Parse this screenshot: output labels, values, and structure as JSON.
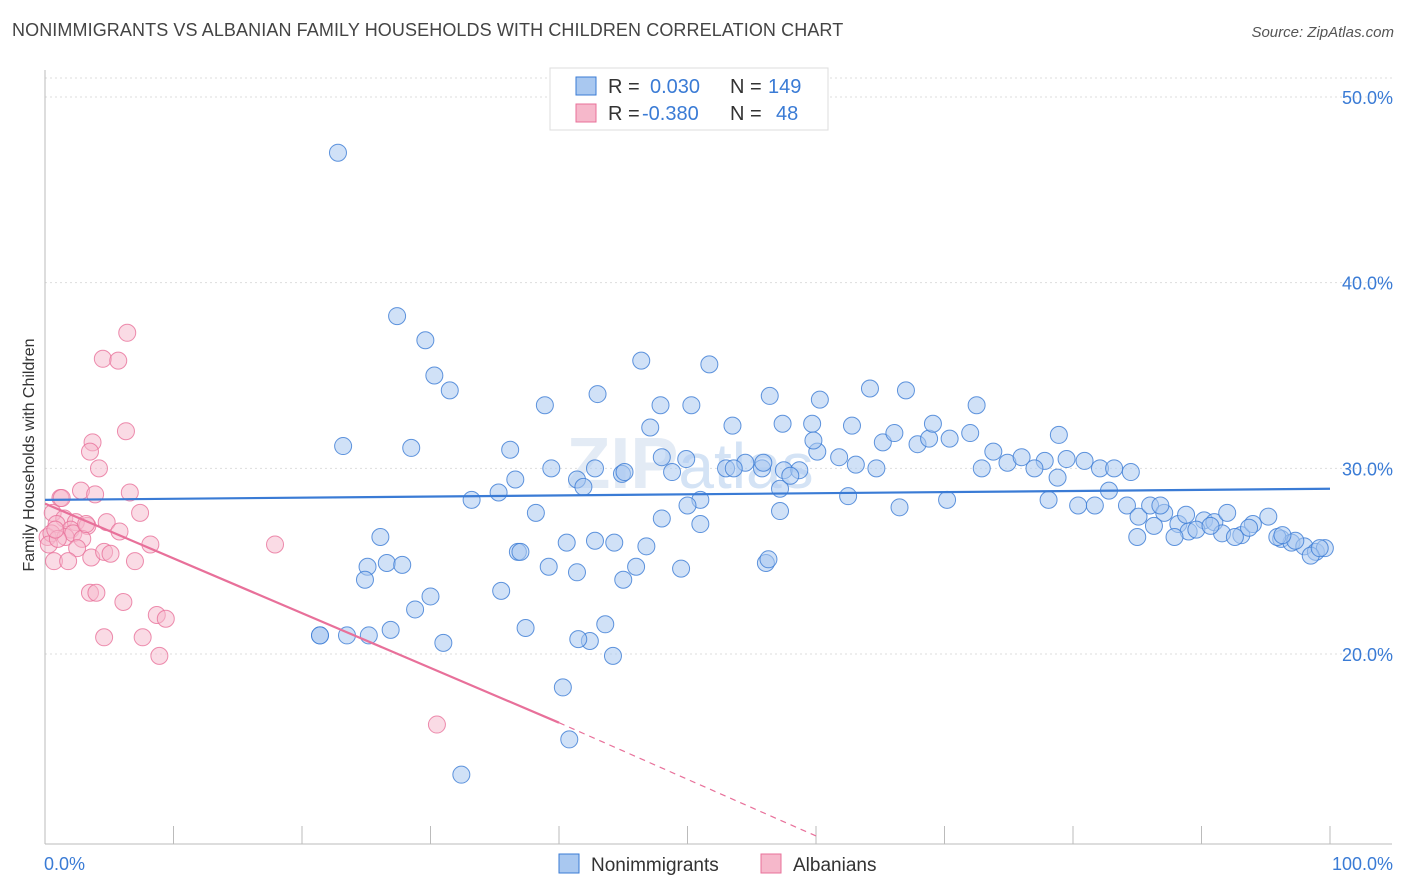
{
  "title": "NONIMMIGRANTS VS ALBANIAN FAMILY HOUSEHOLDS WITH CHILDREN CORRELATION CHART",
  "source": "Source: ZipAtlas.com",
  "colors": {
    "blue": "#3a7bd5",
    "blue_fill": "#a9c8f0",
    "pink": "#e8709a",
    "pink_fill": "#f6b8cb",
    "grid": "#dddddd"
  },
  "legend": {
    "r_label": "R =",
    "n_label": "N =",
    "rows": [
      {
        "r": "0.030",
        "n": "149"
      },
      {
        "r": "-0.380",
        "n": "48"
      }
    ]
  },
  "watermark": "ZIPatlas",
  "chart_data": {
    "type": "scatter",
    "title": "NONIMMIGRANTS VS ALBANIAN FAMILY HOUSEHOLDS WITH CHILDREN CORRELATION CHART",
    "xlabel": "",
    "ylabel": "Family Households with Children",
    "xlim": [
      0,
      100
    ],
    "ylim": [
      10,
      52
    ],
    "x_tick_labels": [
      "0.0%",
      "100.0%"
    ],
    "y_ticks": [
      20,
      30,
      40,
      50
    ],
    "y_tick_labels": [
      "20.0%",
      "30.0%",
      "40.0%",
      "50.0%"
    ],
    "grid": true,
    "legend_position": "top-center",
    "series": [
      {
        "name": "Nonimmigrants",
        "color": "#3a7bd5",
        "trend": {
          "x0": 0,
          "y0": 28.3,
          "x1": 100,
          "y1": 28.9
        },
        "points": [
          [
            22.8,
            47
          ],
          [
            27.4,
            38.2
          ],
          [
            29.6,
            36.9
          ],
          [
            30.3,
            35
          ],
          [
            31.5,
            34.2
          ],
          [
            28.5,
            31.1
          ],
          [
            23.2,
            31.2
          ],
          [
            46.4,
            35.8
          ],
          [
            51.7,
            35.6
          ],
          [
            43.0,
            34.0
          ],
          [
            38.9,
            33.4
          ],
          [
            47.9,
            33.4
          ],
          [
            50.3,
            33.4
          ],
          [
            56.4,
            33.9
          ],
          [
            60.3,
            33.7
          ],
          [
            64.2,
            34.3
          ],
          [
            67.0,
            34.2
          ],
          [
            72.5,
            33.4
          ],
          [
            62.8,
            32.3
          ],
          [
            57.4,
            32.4
          ],
          [
            59.7,
            32.4
          ],
          [
            53.5,
            32.3
          ],
          [
            47.1,
            32.2
          ],
          [
            36.2,
            31.0
          ],
          [
            39.4,
            30.0
          ],
          [
            42.8,
            30.0
          ],
          [
            44.9,
            29.7
          ],
          [
            48.0,
            30.6
          ],
          [
            49.9,
            30.5
          ],
          [
            53.0,
            30.0
          ],
          [
            54.5,
            30.3
          ],
          [
            55.8,
            30.0
          ],
          [
            57.5,
            29.9
          ],
          [
            58.7,
            29.9
          ],
          [
            60.1,
            30.9
          ],
          [
            61.8,
            30.6
          ],
          [
            63.1,
            30.2
          ],
          [
            65.2,
            31.4
          ],
          [
            66.1,
            31.9
          ],
          [
            67.9,
            31.3
          ],
          [
            68.8,
            31.6
          ],
          [
            69.1,
            32.4
          ],
          [
            70.4,
            31.6
          ],
          [
            72.0,
            31.9
          ],
          [
            73.8,
            30.9
          ],
          [
            72.9,
            30.0
          ],
          [
            74.9,
            30.3
          ],
          [
            76.0,
            30.6
          ],
          [
            77.8,
            30.4
          ],
          [
            77.0,
            30.0
          ],
          [
            78.8,
            29.5
          ],
          [
            79.5,
            30.5
          ],
          [
            80.9,
            30.4
          ],
          [
            82.1,
            30.0
          ],
          [
            83.2,
            30.0
          ],
          [
            84.5,
            29.8
          ],
          [
            78.1,
            28.3
          ],
          [
            78.9,
            31.8
          ],
          [
            80.4,
            28.0
          ],
          [
            81.7,
            28.0
          ],
          [
            82.8,
            28.8
          ],
          [
            84.2,
            28.0
          ],
          [
            85.1,
            27.4
          ],
          [
            86.0,
            28.0
          ],
          [
            87.1,
            27.6
          ],
          [
            88.2,
            27.0
          ],
          [
            89.0,
            26.6
          ],
          [
            90.2,
            27.2
          ],
          [
            91.0,
            27.1
          ],
          [
            92.0,
            27.6
          ],
          [
            93.1,
            26.4
          ],
          [
            94.0,
            27.0
          ],
          [
            95.2,
            27.4
          ],
          [
            96.2,
            26.2
          ],
          [
            97.0,
            26.0
          ],
          [
            98.0,
            25.8
          ],
          [
            98.9,
            25.5
          ],
          [
            99.6,
            25.7
          ],
          [
            85.0,
            26.3
          ],
          [
            86.3,
            26.9
          ],
          [
            87.9,
            26.3
          ],
          [
            89.6,
            26.7
          ],
          [
            91.6,
            26.5
          ],
          [
            93.7,
            26.8
          ],
          [
            95.9,
            26.3
          ],
          [
            97.3,
            26.1
          ],
          [
            98.5,
            25.3
          ],
          [
            99.2,
            25.7
          ],
          [
            96.3,
            26.4
          ],
          [
            92.6,
            26.3
          ],
          [
            90.7,
            26.9
          ],
          [
            88.8,
            27.5
          ],
          [
            86.8,
            28.0
          ],
          [
            70.2,
            28.3
          ],
          [
            62.5,
            28.5
          ],
          [
            57.2,
            28.9
          ],
          [
            51.0,
            28.3
          ],
          [
            45.1,
            29.8
          ],
          [
            41.4,
            29.4
          ],
          [
            36.6,
            29.4
          ],
          [
            35.3,
            28.7
          ],
          [
            33.2,
            28.3
          ],
          [
            26.1,
            26.3
          ],
          [
            26.6,
            24.9
          ],
          [
            25.1,
            24.7
          ],
          [
            24.9,
            24.0
          ],
          [
            27.8,
            24.8
          ],
          [
            30.0,
            23.1
          ],
          [
            28.8,
            22.4
          ],
          [
            26.9,
            21.3
          ],
          [
            23.5,
            21.0
          ],
          [
            25.2,
            21.0
          ],
          [
            36.8,
            25.5
          ],
          [
            37.0,
            25.5
          ],
          [
            41.4,
            24.4
          ],
          [
            44.3,
            26.0
          ],
          [
            48.0,
            27.3
          ],
          [
            51.0,
            27.0
          ],
          [
            49.5,
            24.6
          ],
          [
            46.8,
            25.8
          ],
          [
            46.0,
            24.7
          ],
          [
            45.0,
            24.0
          ],
          [
            42.8,
            26.1
          ],
          [
            40.6,
            26.0
          ],
          [
            38.2,
            27.6
          ],
          [
            39.2,
            24.7
          ],
          [
            35.5,
            23.4
          ],
          [
            31.0,
            20.6
          ],
          [
            37.4,
            21.4
          ],
          [
            42.4,
            20.7
          ],
          [
            41.5,
            20.8
          ],
          [
            43.6,
            21.6
          ],
          [
            44.2,
            19.9
          ],
          [
            40.3,
            18.2
          ],
          [
            21.4,
            21.0
          ],
          [
            21.4,
            21.0
          ],
          [
            57.2,
            27.7
          ],
          [
            56.1,
            24.9
          ],
          [
            56.3,
            25.1
          ],
          [
            66.5,
            27.9
          ],
          [
            48.8,
            29.8
          ],
          [
            53.6,
            30.0
          ],
          [
            41.9,
            29.0
          ],
          [
            32.4,
            13.5
          ],
          [
            40.8,
            15.4
          ],
          [
            64.7,
            30.0
          ],
          [
            55.9,
            30.3
          ],
          [
            58.0,
            29.6
          ],
          [
            50.0,
            28.0
          ],
          [
            59.8,
            31.5
          ]
        ]
      },
      {
        "name": "Albanians",
        "color": "#e8709a",
        "trend": {
          "x0": 0,
          "y0": 28.1,
          "x1": 40,
          "y1": 16.3,
          "dash_x1": 60,
          "dash_y1": 10.2
        },
        "points": [
          [
            6.4,
            37.3
          ],
          [
            4.5,
            35.9
          ],
          [
            5.7,
            35.8
          ],
          [
            6.3,
            32.0
          ],
          [
            3.7,
            31.4
          ],
          [
            3.5,
            30.9
          ],
          [
            4.2,
            30.0
          ],
          [
            1.2,
            28.4
          ],
          [
            2.8,
            28.8
          ],
          [
            3.9,
            28.6
          ],
          [
            6.6,
            28.7
          ],
          [
            7.4,
            27.6
          ],
          [
            0.6,
            27.6
          ],
          [
            1.5,
            27.3
          ],
          [
            0.9,
            27.0
          ],
          [
            2.4,
            27.1
          ],
          [
            2.0,
            26.7
          ],
          [
            3.3,
            26.9
          ],
          [
            4.8,
            27.1
          ],
          [
            5.8,
            26.6
          ],
          [
            0.2,
            26.3
          ],
          [
            0.5,
            26.5
          ],
          [
            1.6,
            26.3
          ],
          [
            2.2,
            26.5
          ],
          [
            2.9,
            26.2
          ],
          [
            0.3,
            25.9
          ],
          [
            1.0,
            26.2
          ],
          [
            0.7,
            25.0
          ],
          [
            2.5,
            25.7
          ],
          [
            3.6,
            25.2
          ],
          [
            4.6,
            25.5
          ],
          [
            5.1,
            25.4
          ],
          [
            7.0,
            25.0
          ],
          [
            8.2,
            25.9
          ],
          [
            17.9,
            25.9
          ],
          [
            1.8,
            25.0
          ],
          [
            3.5,
            23.3
          ],
          [
            4.0,
            23.3
          ],
          [
            6.1,
            22.8
          ],
          [
            8.7,
            22.1
          ],
          [
            9.4,
            21.9
          ],
          [
            4.6,
            20.9
          ],
          [
            7.6,
            20.9
          ],
          [
            8.9,
            19.9
          ],
          [
            30.5,
            16.2
          ],
          [
            1.3,
            28.4
          ],
          [
            3.2,
            27.0
          ],
          [
            0.8,
            26.7
          ]
        ]
      }
    ]
  }
}
